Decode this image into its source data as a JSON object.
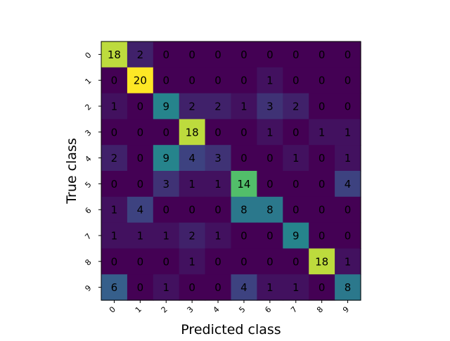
{
  "chart_data": {
    "type": "heatmap",
    "title": "",
    "xlabel": "Predicted class",
    "ylabel": "True class",
    "x_categories": [
      "0",
      "1",
      "2",
      "3",
      "4",
      "5",
      "6",
      "7",
      "8",
      "9"
    ],
    "y_categories": [
      "0",
      "1",
      "2",
      "3",
      "4",
      "5",
      "6",
      "7",
      "8",
      "9"
    ],
    "values": [
      [
        18,
        2,
        0,
        0,
        0,
        0,
        0,
        0,
        0,
        0
      ],
      [
        0,
        20,
        0,
        0,
        0,
        0,
        1,
        0,
        0,
        0
      ],
      [
        1,
        0,
        9,
        2,
        2,
        1,
        3,
        2,
        0,
        0
      ],
      [
        0,
        0,
        0,
        18,
        0,
        0,
        1,
        0,
        1,
        1
      ],
      [
        2,
        0,
        9,
        4,
        3,
        0,
        0,
        1,
        0,
        1
      ],
      [
        0,
        0,
        3,
        1,
        1,
        14,
        0,
        0,
        0,
        4
      ],
      [
        1,
        4,
        0,
        0,
        0,
        8,
        8,
        0,
        0,
        0
      ],
      [
        1,
        1,
        1,
        2,
        1,
        0,
        0,
        9,
        0,
        0
      ],
      [
        0,
        0,
        0,
        1,
        0,
        0,
        0,
        0,
        18,
        1
      ],
      [
        6,
        0,
        1,
        0,
        0,
        4,
        1,
        1,
        0,
        8
      ]
    ],
    "value_range": [
      0,
      20
    ],
    "colormap": "viridis",
    "grid": false
  }
}
